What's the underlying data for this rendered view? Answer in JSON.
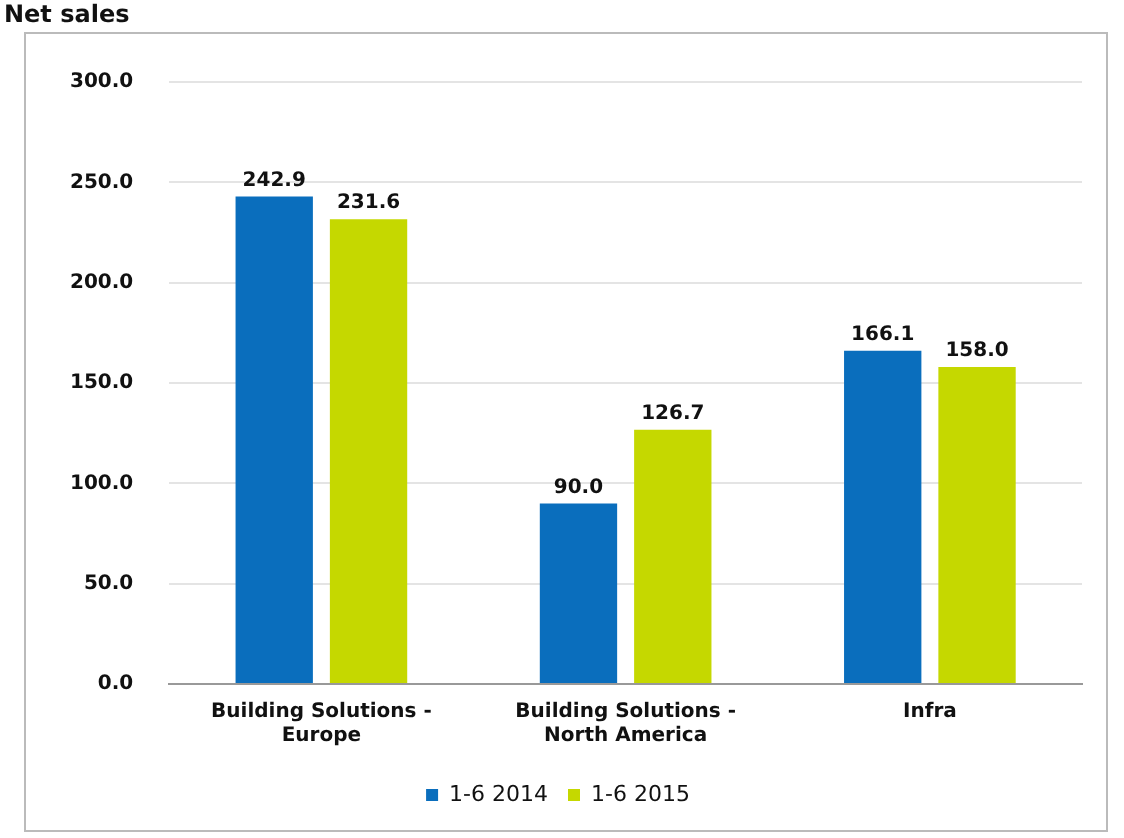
{
  "chart_data": {
    "type": "bar",
    "title": "Net sales",
    "categories": [
      "Building Solutions - Europe",
      "Building Solutions - North America",
      "Infra"
    ],
    "series": [
      {
        "name": "1-6 2014",
        "color": "#0a6ebd",
        "values": [
          242.9,
          90,
          166.1
        ],
        "value_labels": [
          "242.9",
          "90.0",
          "166.1"
        ]
      },
      {
        "name": "1-6 2015",
        "color": "#c5d800",
        "values": [
          231.6,
          126.7,
          158
        ],
        "value_labels": [
          "231.6",
          "126.7",
          "158.0"
        ]
      }
    ],
    "ylim": [
      0,
      300
    ],
    "yticks": [
      {
        "value": 0,
        "label": "0.0"
      },
      {
        "value": 50,
        "label": "50.0"
      },
      {
        "value": 100,
        "label": "100.0"
      },
      {
        "value": 150,
        "label": "150.0"
      },
      {
        "value": 200,
        "label": "200.0"
      },
      {
        "value": 250,
        "label": "250.0"
      },
      {
        "value": 300,
        "label": "300.0"
      }
    ],
    "grid": "y",
    "legend": "bottom"
  }
}
